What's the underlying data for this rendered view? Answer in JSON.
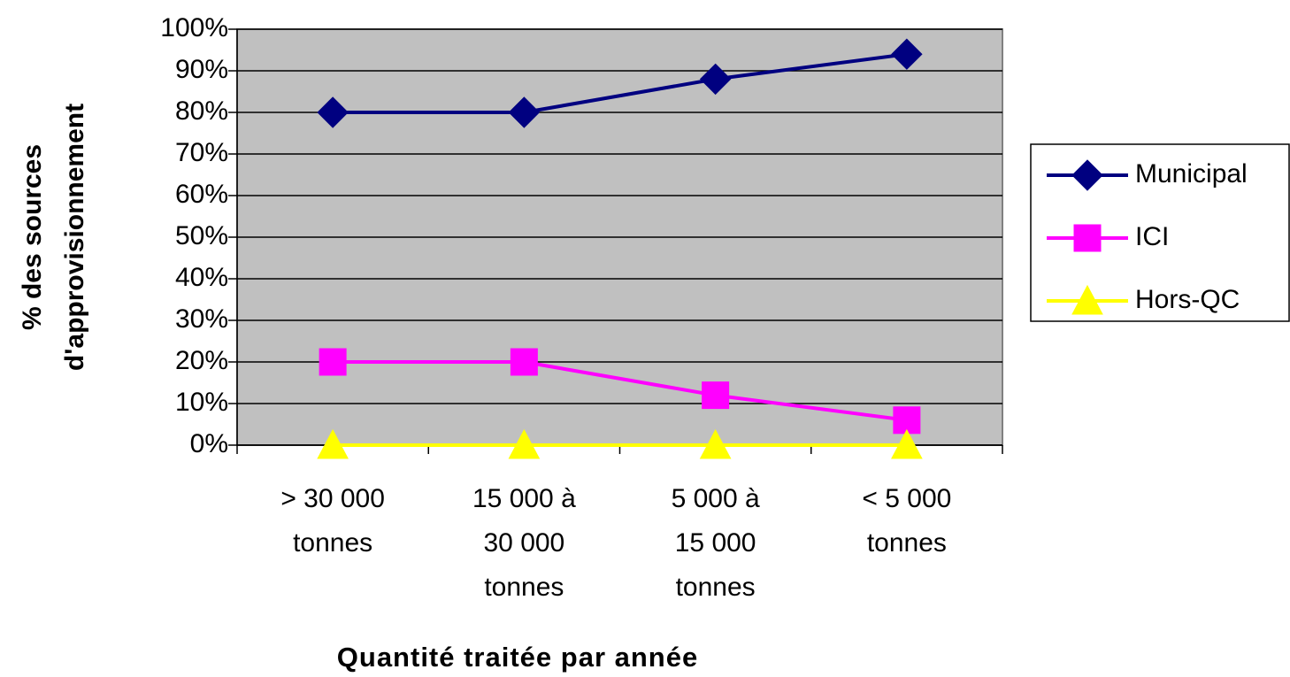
{
  "chart_data": {
    "type": "line",
    "x_label": "Quantité traitée par année",
    "y_label": [
      "% des sources",
      "d'approvisionnement"
    ],
    "categories": [
      [
        "> 30 000",
        "tonnes"
      ],
      [
        "15 000 à",
        "30 000",
        "tonnes"
      ],
      [
        "5 000 à",
        "15 000",
        "tonnes"
      ],
      [
        "< 5 000",
        "tonnes"
      ]
    ],
    "series": [
      {
        "name": "Municipal",
        "color": "#000080",
        "marker": "diamond",
        "values": [
          80,
          80,
          88,
          94
        ]
      },
      {
        "name": "ICI",
        "color": "#ff00ff",
        "marker": "square",
        "values": [
          20,
          20,
          12,
          6
        ]
      },
      {
        "name": "Hors-QC",
        "color": "#ffff00",
        "marker": "triangle",
        "values": [
          0,
          0,
          0,
          0
        ]
      }
    ],
    "ylim": [
      0,
      100
    ],
    "yticks": [
      {
        "value": 0,
        "label": "0%"
      },
      {
        "value": 10,
        "label": "10%"
      },
      {
        "value": 20,
        "label": "20%"
      },
      {
        "value": 30,
        "label": "30%"
      },
      {
        "value": 40,
        "label": "40%"
      },
      {
        "value": 50,
        "label": "50%"
      },
      {
        "value": 60,
        "label": "60%"
      },
      {
        "value": 70,
        "label": "70%"
      },
      {
        "value": 80,
        "label": "80%"
      },
      {
        "value": 90,
        "label": "90%"
      },
      {
        "value": 100,
        "label": "100%"
      }
    ],
    "grid": true,
    "legend": "right",
    "plot_background": "#c0c0c0"
  }
}
